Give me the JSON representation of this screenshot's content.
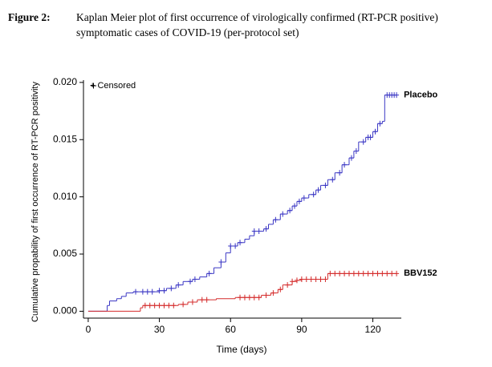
{
  "chart_data": {
    "type": "step",
    "figure_label": "Figure 2:",
    "title": "Kaplan Meier plot of first occurrence of virologically confirmed (RT-PCR positive) symptomatic cases of COVID-19 (per-protocol set)",
    "xlabel": "Time (days)",
    "ylabel": "Cumulative propability of first occurrence of RT-PCR positivity",
    "legend_label": "+ Censored",
    "xlim": [
      -2,
      132
    ],
    "xticks": [
      0,
      30,
      60,
      90,
      120
    ],
    "ylim": [
      -0.0006,
      0.0202
    ],
    "yticks": [
      {
        "value": 0,
        "label": "0.000"
      },
      {
        "value": 0.005,
        "label": "0.005"
      },
      {
        "value": 0.01,
        "label": "0.010"
      },
      {
        "value": 0.015,
        "label": "0.015"
      },
      {
        "value": 0.02,
        "label": "0.020"
      }
    ],
    "series": [
      {
        "name": "Placebo",
        "color": "#3a36c4",
        "label_color": "#5a28e6",
        "x": [
          0,
          8,
          9,
          12,
          14,
          16,
          19,
          30,
          33,
          37,
          40,
          44,
          47,
          50,
          53,
          56,
          58,
          60,
          63,
          66,
          68,
          70,
          74,
          76,
          78,
          81,
          84,
          86,
          88,
          90,
          93,
          96,
          98,
          101,
          104,
          107,
          110,
          112,
          114,
          117,
          120,
          122,
          124,
          125,
          130
        ],
        "y": [
          0,
          0.0005,
          0.0009,
          0.0011,
          0.0013,
          0.0016,
          0.0017,
          0.0018,
          0.002,
          0.0023,
          0.0026,
          0.0028,
          0.003,
          0.0033,
          0.0038,
          0.0043,
          0.0051,
          0.0057,
          0.006,
          0.0063,
          0.0066,
          0.007,
          0.0072,
          0.0076,
          0.008,
          0.0085,
          0.0088,
          0.0092,
          0.0096,
          0.0099,
          0.0102,
          0.0106,
          0.011,
          0.0115,
          0.0121,
          0.0128,
          0.0134,
          0.014,
          0.0148,
          0.0152,
          0.0157,
          0.0164,
          0.0166,
          0.0189,
          0.0189
        ],
        "censor_x": [
          20,
          23,
          25,
          27,
          30,
          32,
          35,
          38,
          43,
          45,
          51,
          56,
          60,
          62,
          64,
          70,
          72,
          75,
          79,
          82,
          85,
          87,
          89,
          91,
          95,
          97,
          100,
          103,
          106,
          108,
          111,
          113,
          116,
          118,
          119,
          121,
          123,
          126,
          127,
          128,
          129,
          130
        ],
        "censor_y": [
          0.0017,
          0.0017,
          0.0017,
          0.0017,
          0.0018,
          0.0018,
          0.002,
          0.0023,
          0.0026,
          0.0028,
          0.0033,
          0.0043,
          0.0057,
          0.0057,
          0.006,
          0.007,
          0.007,
          0.0072,
          0.008,
          0.0085,
          0.0088,
          0.0092,
          0.0096,
          0.0099,
          0.0102,
          0.0106,
          0.011,
          0.0115,
          0.0121,
          0.0128,
          0.0134,
          0.014,
          0.0148,
          0.0152,
          0.0152,
          0.0157,
          0.0164,
          0.0189,
          0.0189,
          0.0189,
          0.0189,
          0.0189
        ]
      },
      {
        "name": "BBV152",
        "color": "#d42a2a",
        "label_color": "#e01818",
        "x": [
          0,
          22,
          23,
          38,
          42,
          46,
          54,
          62,
          73,
          77,
          80,
          82,
          86,
          88,
          90,
          101,
          130
        ],
        "y": [
          0,
          0.0003,
          0.0005,
          0.0006,
          0.0008,
          0.001,
          0.0011,
          0.0012,
          0.0014,
          0.0016,
          0.0019,
          0.0023,
          0.0026,
          0.0027,
          0.0028,
          0.0033,
          0.0033
        ],
        "censor_x": [
          24,
          26,
          28,
          30,
          32,
          34,
          36,
          40,
          44,
          48,
          50,
          64,
          66,
          68,
          70,
          72,
          75,
          78,
          81,
          84,
          86,
          88,
          90,
          92,
          94,
          96,
          98,
          100,
          102,
          104,
          106,
          108,
          110,
          112,
          114,
          116,
          118,
          120,
          122,
          124,
          126,
          128,
          130
        ],
        "censor_y": [
          0.0005,
          0.0005,
          0.0005,
          0.0005,
          0.0005,
          0.0005,
          0.0005,
          0.0006,
          0.0008,
          0.001,
          0.001,
          0.0012,
          0.0012,
          0.0012,
          0.0012,
          0.0012,
          0.0014,
          0.0016,
          0.0019,
          0.0023,
          0.0026,
          0.0027,
          0.0028,
          0.0028,
          0.0028,
          0.0028,
          0.0028,
          0.0028,
          0.0033,
          0.0033,
          0.0033,
          0.0033,
          0.0033,
          0.0033,
          0.0033,
          0.0033,
          0.0033,
          0.0033,
          0.0033,
          0.0033,
          0.0033,
          0.0033,
          0.0033
        ]
      }
    ]
  }
}
